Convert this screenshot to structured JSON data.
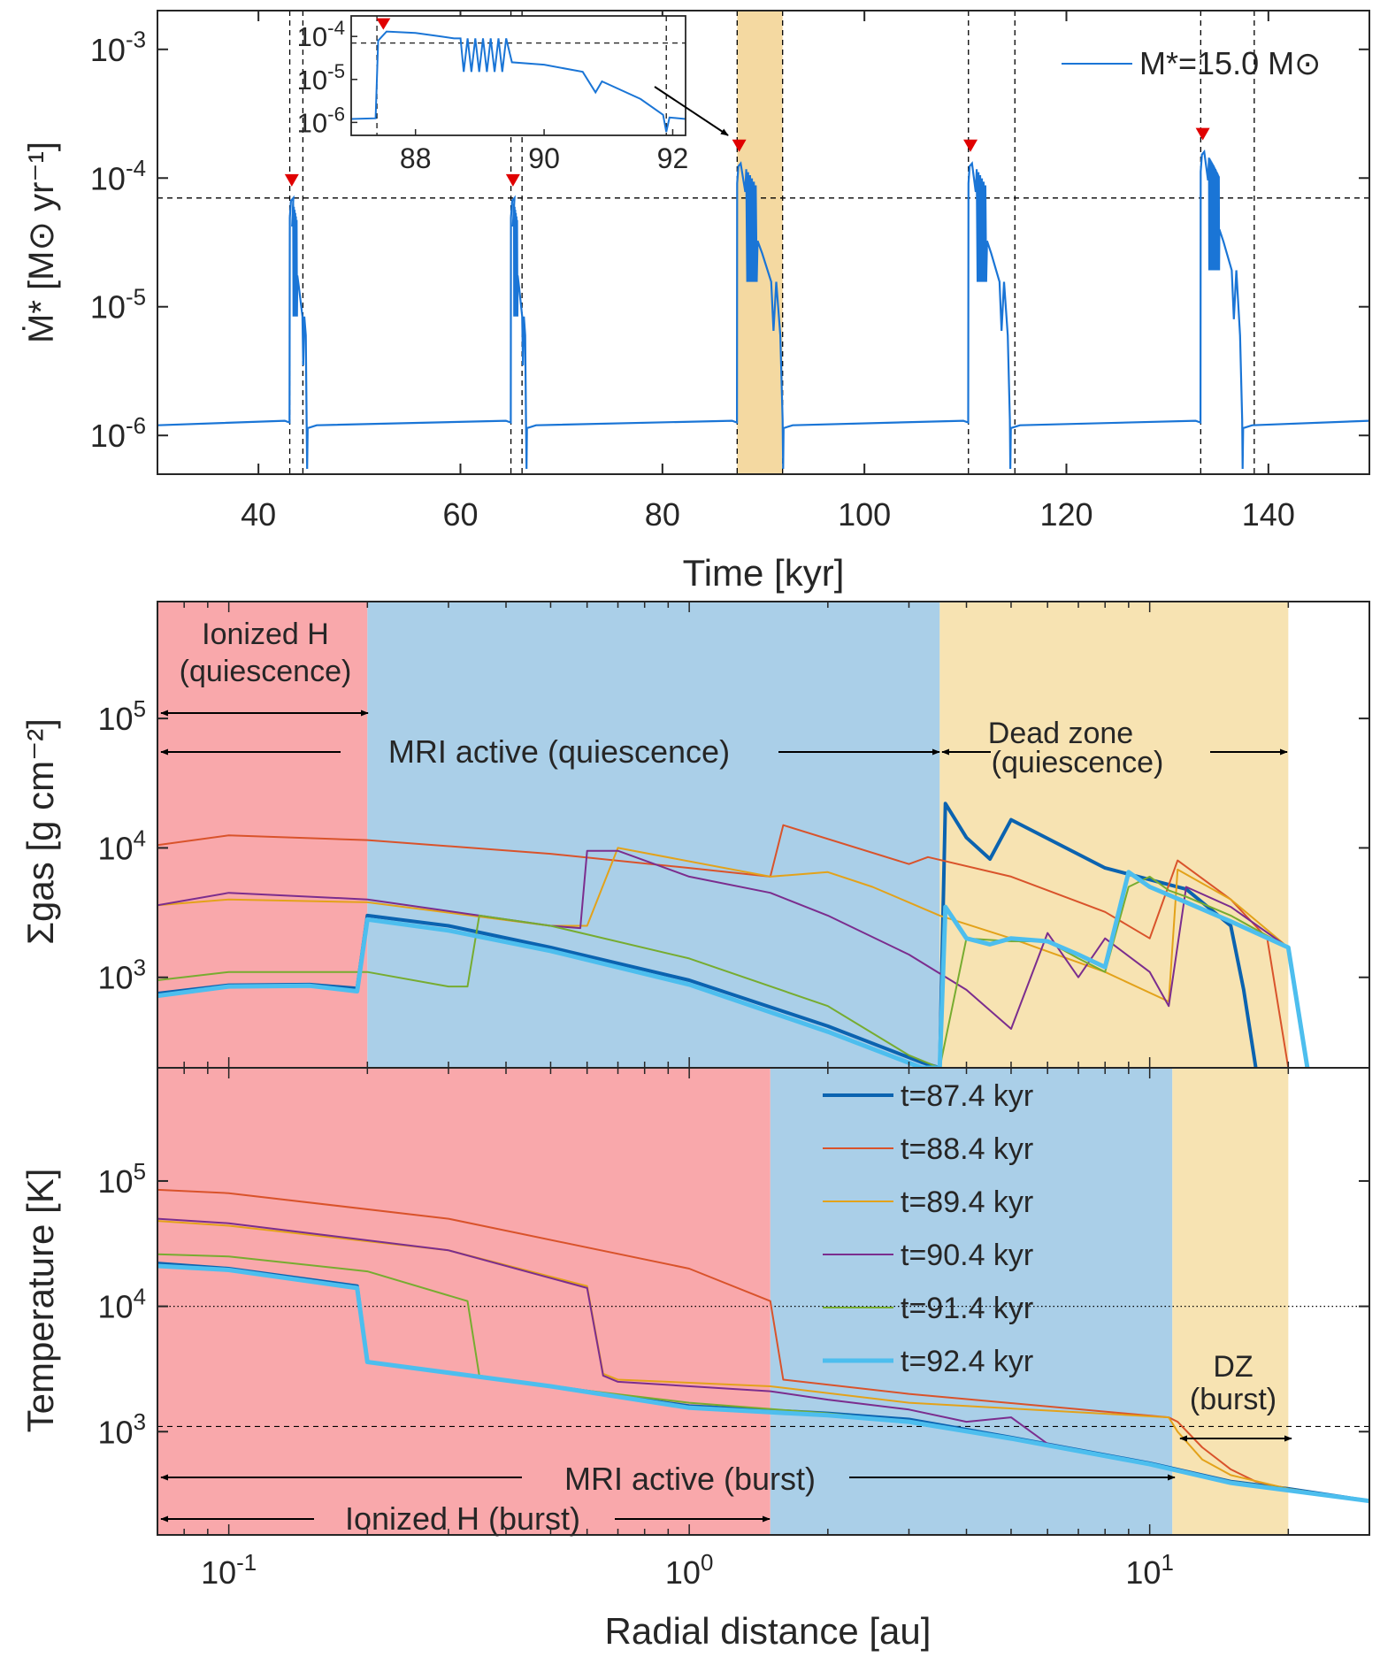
{
  "chart_data": [
    {
      "type": "line",
      "panel": "top",
      "xlabel": "Time [kyr]",
      "ylabel": "Ṁ* [M⊙ yr⁻¹]",
      "xscale": "linear",
      "yscale": "log",
      "xlim": [
        30,
        150
      ],
      "ylim": [
        5e-07,
        0.002
      ],
      "xticks": [
        40,
        60,
        80,
        100,
        120,
        140
      ],
      "xtick_labels": [
        "40",
        "60",
        "80",
        "100",
        "120",
        "140"
      ],
      "yticks": [
        1e-06,
        1e-05,
        0.0001,
        0.001
      ],
      "ytick_labels": [
        "10^-6",
        "10^-5",
        "10^-4",
        "10^-3"
      ],
      "legend": "M*=15.0 M⊙",
      "line_color": "#1a75d6",
      "threshold_line_y": 7e-05,
      "highlight_band": [
        87.4,
        91.9
      ],
      "highlight_color": "#f4d9a1",
      "burst_onsets": [
        43.1,
        65.0,
        87.4,
        110.3,
        133.3
      ],
      "burst_ends": [
        44.4,
        66.1,
        91.9,
        114.9,
        138.6
      ],
      "burst_peaks": [
        7e-05,
        7e-05,
        0.00013,
        0.00013,
        0.00016
      ],
      "quiescent_rate": 1.2e-06,
      "inset": {
        "xlim": [
          87,
          92.2
        ],
        "ylim": [
          5e-07,
          0.0003
        ],
        "xticks": [
          88,
          90,
          92
        ],
        "xtick_labels": [
          "88",
          "90",
          "92"
        ],
        "yticks": [
          1e-06,
          1e-05,
          0.0001
        ],
        "ytick_labels": [
          "10^-6",
          "10^-5",
          "10^-4"
        ],
        "vlines": [
          87.4,
          91.9
        ]
      }
    },
    {
      "type": "line",
      "panel": "middle",
      "ylabel": "Σgas [g cm⁻²]",
      "xscale": "log",
      "yscale": "log",
      "xlim": [
        0.07,
        30
      ],
      "ylim": [
        200,
        800000
      ],
      "yticks": [
        1000,
        10000,
        100000
      ],
      "ytick_labels": [
        "10^3",
        "10^4",
        "10^5"
      ],
      "regions": [
        {
          "from": 0.07,
          "to": 0.2,
          "color": "#f9a8ab"
        },
        {
          "from": 0.2,
          "to": 3.5,
          "color": "#aacfe8"
        },
        {
          "from": 3.5,
          "to": 20,
          "color": "#f7e3b2"
        }
      ],
      "annotations": [
        {
          "line1": "Ionized H",
          "line2": "(quiescence)"
        },
        {
          "line1": "MRI active (quiescence)"
        },
        {
          "line1": "Dead zone",
          "line2": "(quiescence)"
        }
      ],
      "series": [
        {
          "name": "t=87.4 kyr",
          "color": "#0b63b0",
          "width": 4,
          "x": [
            0.07,
            0.1,
            0.15,
            0.19,
            0.2,
            0.3,
            0.5,
            1.0,
            2.0,
            3.2,
            3.5,
            3.6,
            4.0,
            4.5,
            5.0,
            8.0,
            12.0,
            15.0,
            16.0,
            17.0
          ],
          "y": [
            750,
            870,
            880,
            820,
            3000,
            2500,
            1700,
            950,
            420,
            220,
            200,
            22000,
            12000,
            8200,
            16500,
            7000,
            4800,
            2500,
            800,
            200
          ]
        },
        {
          "name": "t=88.4 kyr",
          "color": "#d9532b",
          "width": 2,
          "x": [
            0.07,
            0.1,
            0.2,
            0.5,
            1.0,
            1.5,
            1.6,
            3.0,
            3.3,
            5.0,
            8.0,
            10.0,
            11.5,
            15.0,
            18.0,
            20.0
          ],
          "y": [
            10500,
            12500,
            11500,
            9000,
            7000,
            6000,
            15000,
            7500,
            8500,
            6000,
            3200,
            2000,
            8000,
            4000,
            2000,
            200
          ]
        },
        {
          "name": "t=89.4 kyr",
          "color": "#e3a21a",
          "width": 2,
          "x": [
            0.07,
            0.1,
            0.2,
            0.5,
            0.6,
            0.7,
            1.5,
            2.0,
            2.5,
            3.5,
            5.0,
            8.0,
            11.0,
            11.5,
            15.0,
            20.0,
            22.0
          ],
          "y": [
            3600,
            4000,
            3800,
            2500,
            2500,
            10000,
            6000,
            6500,
            5000,
            3000,
            2000,
            1100,
            650,
            6800,
            4000,
            1700,
            200
          ]
        },
        {
          "name": "t=90.4 kyr",
          "color": "#7b2d8e",
          "width": 2,
          "x": [
            0.07,
            0.1,
            0.2,
            0.5,
            0.58,
            0.6,
            0.7,
            1.0,
            1.5,
            2.0,
            3.0,
            4.0,
            5.0,
            6.0,
            7.0,
            8.0,
            10.0,
            11.0,
            12.0,
            15.0,
            20.0,
            22.0
          ],
          "y": [
            3600,
            4500,
            4000,
            2500,
            2400,
            9500,
            9500,
            6000,
            4500,
            3000,
            1500,
            800,
            400,
            2200,
            1000,
            2000,
            1100,
            600,
            5000,
            3500,
            1700,
            200
          ]
        },
        {
          "name": "t=91.4 kyr",
          "color": "#77ac30",
          "width": 2,
          "x": [
            0.07,
            0.1,
            0.2,
            0.3,
            0.33,
            0.35,
            0.5,
            1.0,
            2.0,
            3.0,
            3.5,
            4.0,
            5.0,
            6.0,
            7.0,
            8.0,
            9.0,
            10.0,
            11.0,
            12.0,
            15.0,
            20.0,
            22.0
          ],
          "y": [
            950,
            1100,
            1100,
            850,
            850,
            3000,
            2500,
            1400,
            600,
            250,
            200,
            2000,
            1900,
            1900,
            1400,
            1100,
            5000,
            6000,
            4700,
            4200,
            3000,
            1700,
            200
          ]
        },
        {
          "name": "t=92.4 kyr",
          "color": "#4dbeee",
          "width": 5,
          "x": [
            0.07,
            0.1,
            0.15,
            0.19,
            0.2,
            0.3,
            0.5,
            1.0,
            2.0,
            3.2,
            3.5,
            3.6,
            4.0,
            4.5,
            5.0,
            6.0,
            7.0,
            8.0,
            9.0,
            10.0,
            12.0,
            15.0,
            20.0,
            22.0
          ],
          "y": [
            720,
            850,
            860,
            780,
            2800,
            2300,
            1600,
            880,
            380,
            200,
            200,
            3500,
            2000,
            1800,
            2000,
            1900,
            1500,
            1200,
            6500,
            5000,
            3800,
            2700,
            1700,
            200
          ]
        }
      ]
    },
    {
      "type": "line",
      "panel": "bottom",
      "xlabel": "Radial distance [au]",
      "ylabel": "Temperature [K]",
      "xscale": "log",
      "yscale": "log",
      "xlim": [
        0.07,
        30
      ],
      "ylim": [
        150,
        800000
      ],
      "xticks": [
        0.1,
        1,
        10
      ],
      "xtick_labels": [
        "10^-1",
        "10^0",
        "10^1"
      ],
      "yticks": [
        1000,
        10000,
        100000
      ],
      "ytick_labels": [
        "10^3",
        "10^4",
        "10^5"
      ],
      "hline_dotted": 10000,
      "hline_dashed": 1100,
      "regions": [
        {
          "from": 0.07,
          "to": 1.5,
          "color": "#f9a8ab"
        },
        {
          "from": 1.5,
          "to": 11.2,
          "color": "#aacfe8"
        },
        {
          "from": 11.2,
          "to": 20,
          "color": "#f7e3b2"
        }
      ],
      "annotations": [
        {
          "line1": "DZ",
          "line2": "(burst)"
        },
        {
          "line1": "MRI active (burst)"
        },
        {
          "line1": "Ionized H (burst)"
        }
      ],
      "series": [
        {
          "name": "t=87.4 kyr",
          "color": "#0b63b0",
          "width": 4,
          "x": [
            0.07,
            0.1,
            0.19,
            0.2,
            0.5,
            1.0,
            2.0,
            3.0,
            5.0,
            10.0,
            15.0,
            20.0,
            30.0
          ],
          "y": [
            22000,
            20000,
            14500,
            3600,
            2300,
            1600,
            1400,
            1250,
            900,
            560,
            400,
            350,
            280
          ]
        },
        {
          "name": "t=88.4 kyr",
          "color": "#d9532b",
          "width": 2,
          "x": [
            0.07,
            0.1,
            0.3,
            1.0,
            1.5,
            1.6,
            3.0,
            11.0,
            11.5,
            13.0,
            15.0,
            17.0,
            20.0,
            30.0
          ],
          "y": [
            85000,
            80000,
            50000,
            20000,
            11000,
            2600,
            2000,
            1300,
            1200,
            750,
            500,
            400,
            350,
            280
          ]
        },
        {
          "name": "t=89.4 kyr",
          "color": "#e3a21a",
          "width": 2,
          "x": [
            0.07,
            0.1,
            0.3,
            0.6,
            0.65,
            0.7,
            1.5,
            3.0,
            11.0,
            11.5,
            13.0,
            15.0,
            20.0,
            30.0
          ],
          "y": [
            48000,
            44000,
            28000,
            14500,
            2900,
            2600,
            2300,
            1700,
            1300,
            1000,
            600,
            450,
            350,
            280
          ]
        },
        {
          "name": "t=90.4 kyr",
          "color": "#7b2d8e",
          "width": 2,
          "x": [
            0.07,
            0.1,
            0.3,
            0.6,
            0.65,
            0.7,
            1.5,
            2.0,
            3.0,
            4.0,
            5.0,
            6.0,
            10.0,
            11.5,
            15.0,
            20.0,
            30.0
          ],
          "y": [
            50000,
            46000,
            28000,
            14000,
            2800,
            2500,
            2100,
            1800,
            1500,
            1200,
            1300,
            800,
            550,
            500,
            400,
            350,
            280
          ]
        },
        {
          "name": "t=91.4 kyr",
          "color": "#77ac30",
          "width": 2,
          "x": [
            0.07,
            0.1,
            0.2,
            0.33,
            0.35,
            0.5,
            1.0,
            2.0,
            3.0,
            5.0,
            10.0,
            15.0,
            20.0,
            30.0
          ],
          "y": [
            26000,
            25000,
            19000,
            11000,
            2800,
            2300,
            1700,
            1400,
            1200,
            900,
            560,
            400,
            350,
            280
          ]
        },
        {
          "name": "t=92.4 kyr",
          "color": "#4dbeee",
          "width": 5,
          "x": [
            0.07,
            0.1,
            0.19,
            0.2,
            0.5,
            1.0,
            2.0,
            3.0,
            5.0,
            10.0,
            15.0,
            20.0,
            30.0
          ],
          "y": [
            21000,
            19500,
            14000,
            3600,
            2300,
            1550,
            1350,
            1200,
            880,
            550,
            390,
            340,
            280
          ]
        }
      ]
    }
  ]
}
